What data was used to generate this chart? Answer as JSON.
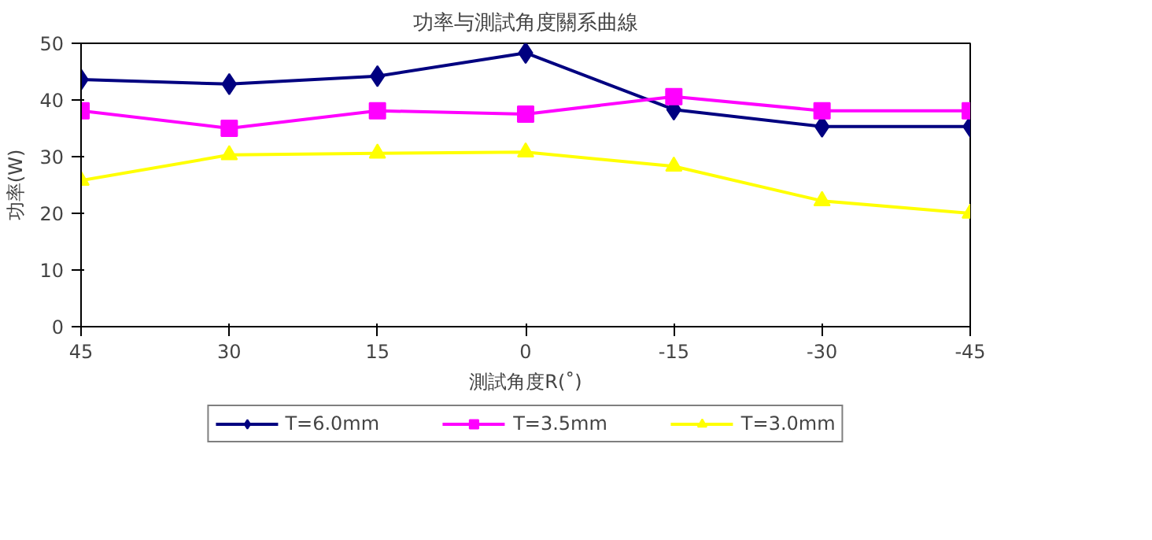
{
  "chart_data": {
    "type": "line",
    "title": "功率与測試角度關系曲線",
    "xlabel": "測試角度R(˚)",
    "ylabel": "功率(W)",
    "categories": [
      "45",
      "30",
      "15",
      "0",
      "-15",
      "-30",
      "-45"
    ],
    "ylim": [
      0,
      50
    ],
    "yticks": [
      0,
      10,
      20,
      30,
      40,
      50
    ],
    "grid": false,
    "legend": "bottom",
    "series": [
      {
        "name": "T=6.0mm",
        "color": "#000080",
        "marker": "diamond",
        "values": [
          43.6,
          42.8,
          44.2,
          48.3,
          38.3,
          35.3,
          35.3
        ]
      },
      {
        "name": "T=3.5mm",
        "color": "#ff00ff",
        "marker": "square",
        "values": [
          38.1,
          35.0,
          38.1,
          37.5,
          40.6,
          38.1,
          38.1
        ]
      },
      {
        "name": "T=3.0mm",
        "color": "#ffff00",
        "marker": "triangle",
        "values": [
          25.8,
          30.3,
          30.6,
          30.8,
          28.3,
          22.2,
          20.0
        ]
      }
    ]
  }
}
